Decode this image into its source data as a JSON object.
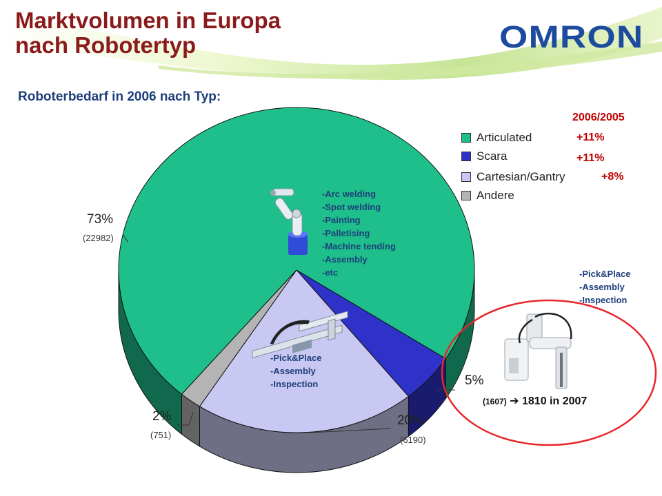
{
  "title": {
    "line1": "Marktvolumen in Europa",
    "line2": "nach Robotertyp"
  },
  "brand": {
    "logo": "OMRON",
    "color": "#1d4c9f"
  },
  "subtitle": "Roboterbedarf in 2006 nach Typ:",
  "growth_header": "2006/2005",
  "chart_data": {
    "type": "pie",
    "title": "Roboterbedarf in 2006 nach Typ:",
    "legend_position": "top-right",
    "slices": [
      {
        "name": "Articulated",
        "percent": 73,
        "count": 22982,
        "percent_label": "73%",
        "count_label": "(22982)",
        "growth": "+11%",
        "color": "#1fbf8c"
      },
      {
        "name": "Scara",
        "percent": 5,
        "count": 1607,
        "percent_label": "5%",
        "count_label": "(1607)",
        "growth": "+11%",
        "color": "#2e32c8"
      },
      {
        "name": "Cartesian/Gantry",
        "percent": 20,
        "count": 6190,
        "percent_label": "20%",
        "count_label": "(6190)",
        "growth": "+8%",
        "color": "#c8c8f2"
      },
      {
        "name": "Andere",
        "percent": 2,
        "count": 751,
        "percent_label": "2%",
        "count_label": "(751)",
        "growth": "",
        "color": "#b4b4b4"
      }
    ]
  },
  "applications": {
    "articulated": [
      "-Arc welding",
      "-Spot welding",
      "-Painting",
      "-Palletising",
      "-Machine tending",
      "-Assembly",
      "-etc"
    ],
    "cartesian": [
      "-Pick&Place",
      "-Assembly",
      "-Inspection"
    ],
    "scara": [
      "-Pick&Place",
      "-Assembly",
      "-Inspection"
    ]
  },
  "forecast": {
    "prefix": "(1607)",
    "arrow": "➔",
    "text": "1810 in 2007"
  },
  "icons": [
    "articulated-robot-icon",
    "cartesian-gantry-robot-icon",
    "scara-robot-icon"
  ],
  "highlight_color": "#e8262a"
}
